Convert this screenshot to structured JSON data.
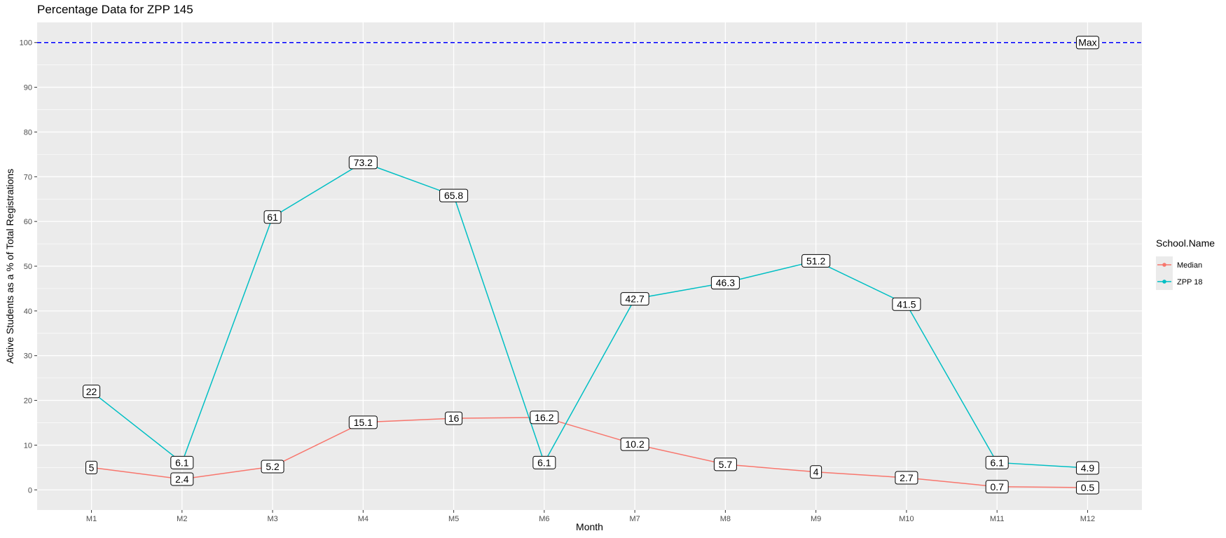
{
  "chart_data": {
    "type": "line",
    "title": "Percentage Data for ZPP 145",
    "xlabel": "Month",
    "ylabel": "Active Students as a % of Total Registrations",
    "categories": [
      "M1",
      "M2",
      "M3",
      "M4",
      "M5",
      "M6",
      "M7",
      "M8",
      "M9",
      "M10",
      "M11",
      "M12"
    ],
    "series": [
      {
        "name": "Median",
        "color": "#F8766D",
        "values": [
          5,
          2.4,
          5.2,
          15.1,
          16,
          16.2,
          10.2,
          5.7,
          4,
          2.7,
          0.7,
          0.5
        ],
        "labels": [
          "5",
          "2.4",
          "5.2",
          "15.1",
          "16",
          "16.2",
          "10.2",
          "5.7",
          "4",
          "2.7",
          "0.7",
          "0.5"
        ]
      },
      {
        "name": "ZPP 18",
        "color": "#00BFC4",
        "values": [
          22,
          6.1,
          61,
          73.2,
          65.8,
          6.1,
          42.7,
          46.3,
          51.2,
          41.5,
          6.1,
          4.9
        ],
        "labels": [
          "22",
          "6.1",
          "61",
          "73.2",
          "65.8",
          "6.1",
          "42.7",
          "46.3",
          "51.2",
          "41.5",
          "6.1",
          "4.9"
        ]
      }
    ],
    "ylim": [
      -4.5,
      104.5
    ],
    "yticks": [
      0,
      10,
      20,
      30,
      40,
      50,
      60,
      70,
      80,
      90,
      100
    ],
    "reference_line": {
      "y": 100,
      "label": "Max",
      "label_position_x": 11.5,
      "color": "#0000FF",
      "style": "dashed"
    },
    "legend": {
      "title": "School.Name",
      "position": "right"
    },
    "grid": true,
    "panel_background": "#EBEBEB"
  }
}
